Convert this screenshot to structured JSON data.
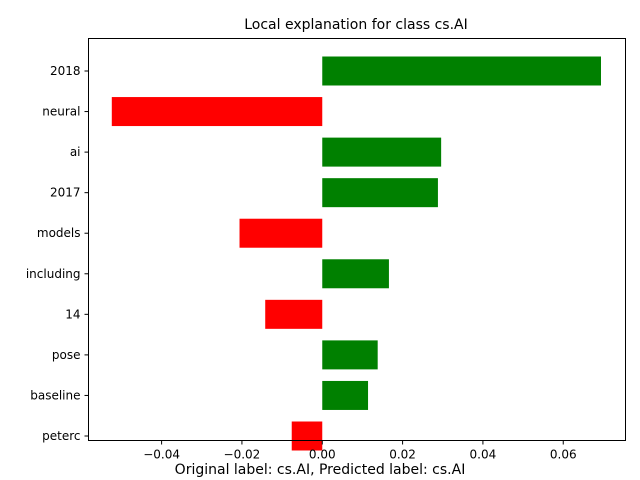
{
  "chart_data": {
    "type": "bar",
    "orientation": "horizontal",
    "title": "Local explanation for class cs.AI",
    "caption": "Original label: cs.AI, Predicted label: cs.AI",
    "categories": [
      "2018",
      "neural",
      "ai",
      "2017",
      "models",
      "including",
      "14",
      "pose",
      "baseline",
      "peterc"
    ],
    "values": [
      0.0694,
      -0.0524,
      0.0296,
      0.0288,
      -0.0206,
      0.0166,
      -0.0142,
      0.0138,
      0.0114,
      -0.0076
    ],
    "xlim": [
      -0.0582,
      0.0755
    ],
    "xticks": [
      -0.04,
      -0.02,
      0.0,
      0.02,
      0.04,
      0.06
    ],
    "xtick_labels": [
      "−0.04",
      "−0.02",
      "0.00",
      "0.02",
      "0.04",
      "0.06"
    ],
    "grid": false,
    "colors": {
      "positive": "#008000",
      "negative": "#ff0000"
    }
  }
}
